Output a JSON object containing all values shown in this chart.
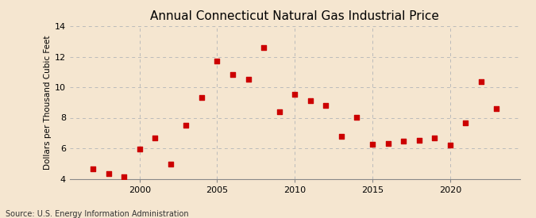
{
  "title": "Annual Connecticut Natural Gas Industrial Price",
  "ylabel": "Dollars per Thousand Cubic Feet",
  "source": "Source: U.S. Energy Information Administration",
  "background_color": "#f5e6d0",
  "plot_bg_color": "#f5e6d0",
  "marker_color": "#cc0000",
  "years": [
    1997,
    1998,
    1999,
    2000,
    2001,
    2002,
    2003,
    2004,
    2005,
    2006,
    2007,
    2008,
    2009,
    2010,
    2011,
    2012,
    2013,
    2014,
    2015,
    2016,
    2017,
    2018,
    2019,
    2020,
    2021,
    2022,
    2023
  ],
  "values": [
    4.65,
    4.35,
    4.15,
    5.95,
    6.7,
    4.95,
    7.5,
    9.3,
    11.7,
    10.85,
    10.5,
    12.6,
    8.4,
    9.55,
    9.1,
    8.8,
    6.8,
    8.05,
    6.25,
    6.3,
    6.45,
    6.5,
    6.7,
    6.2,
    7.65,
    10.35,
    8.6
  ],
  "xlim": [
    1995.5,
    2024.5
  ],
  "ylim": [
    4,
    14
  ],
  "yticks": [
    4,
    6,
    8,
    10,
    12,
    14
  ],
  "xticks": [
    2000,
    2005,
    2010,
    2015,
    2020
  ],
  "grid_color": "#bbbbbb",
  "title_fontsize": 11,
  "label_fontsize": 7.5,
  "tick_fontsize": 8,
  "source_fontsize": 7
}
